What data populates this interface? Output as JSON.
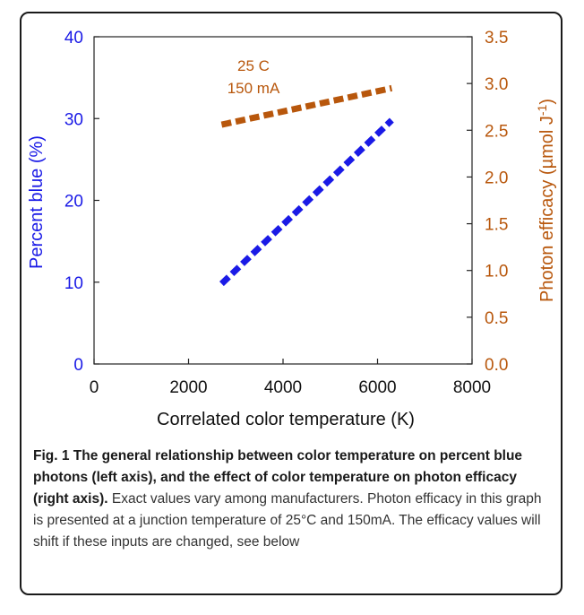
{
  "chart_data": {
    "type": "line",
    "xlabel": "Correlated color temperature (K)",
    "xlim": [
      0,
      8000
    ],
    "x_ticks": [
      "0",
      "2000",
      "4000",
      "6000",
      "8000"
    ],
    "left_axis": {
      "label": "Percent blue (%)",
      "ylim": [
        0,
        40
      ],
      "ticks": [
        "0",
        "10",
        "20",
        "30",
        "40"
      ],
      "color": "#1a1ae6"
    },
    "right_axis": {
      "label_main": "Photon efficacy (µmol J",
      "label_sup": "-1",
      "label_close": ")",
      "ylim": [
        0.0,
        3.5
      ],
      "ticks": [
        "0.0",
        "0.5",
        "1.0",
        "1.5",
        "2.0",
        "2.5",
        "3.0",
        "3.5"
      ],
      "color": "#b8570c"
    },
    "series": [
      {
        "name": "Percent blue",
        "axis": "left",
        "color": "#1a1ae6",
        "x": [
          2700,
          6300
        ],
        "y": [
          9.8,
          29.8
        ]
      },
      {
        "name": "Photon efficacy",
        "axis": "right",
        "color": "#b8570c",
        "x": [
          2700,
          6300
        ],
        "y": [
          2.56,
          2.95
        ]
      }
    ],
    "annotation": {
      "line1": "25 C",
      "line2": "150 mA"
    }
  },
  "caption": {
    "bold": "Fig. 1 The general relationship between color temperature on percent blue photons (left axis), and the effect of color temperature on photon efficacy (right axis).",
    "text": "Exact values vary among manufacturers. Photon efficacy in this graph is presented at a junction temperature of 25°C and 150mA. The efficacy values will shift if these inputs are changed, see below"
  }
}
